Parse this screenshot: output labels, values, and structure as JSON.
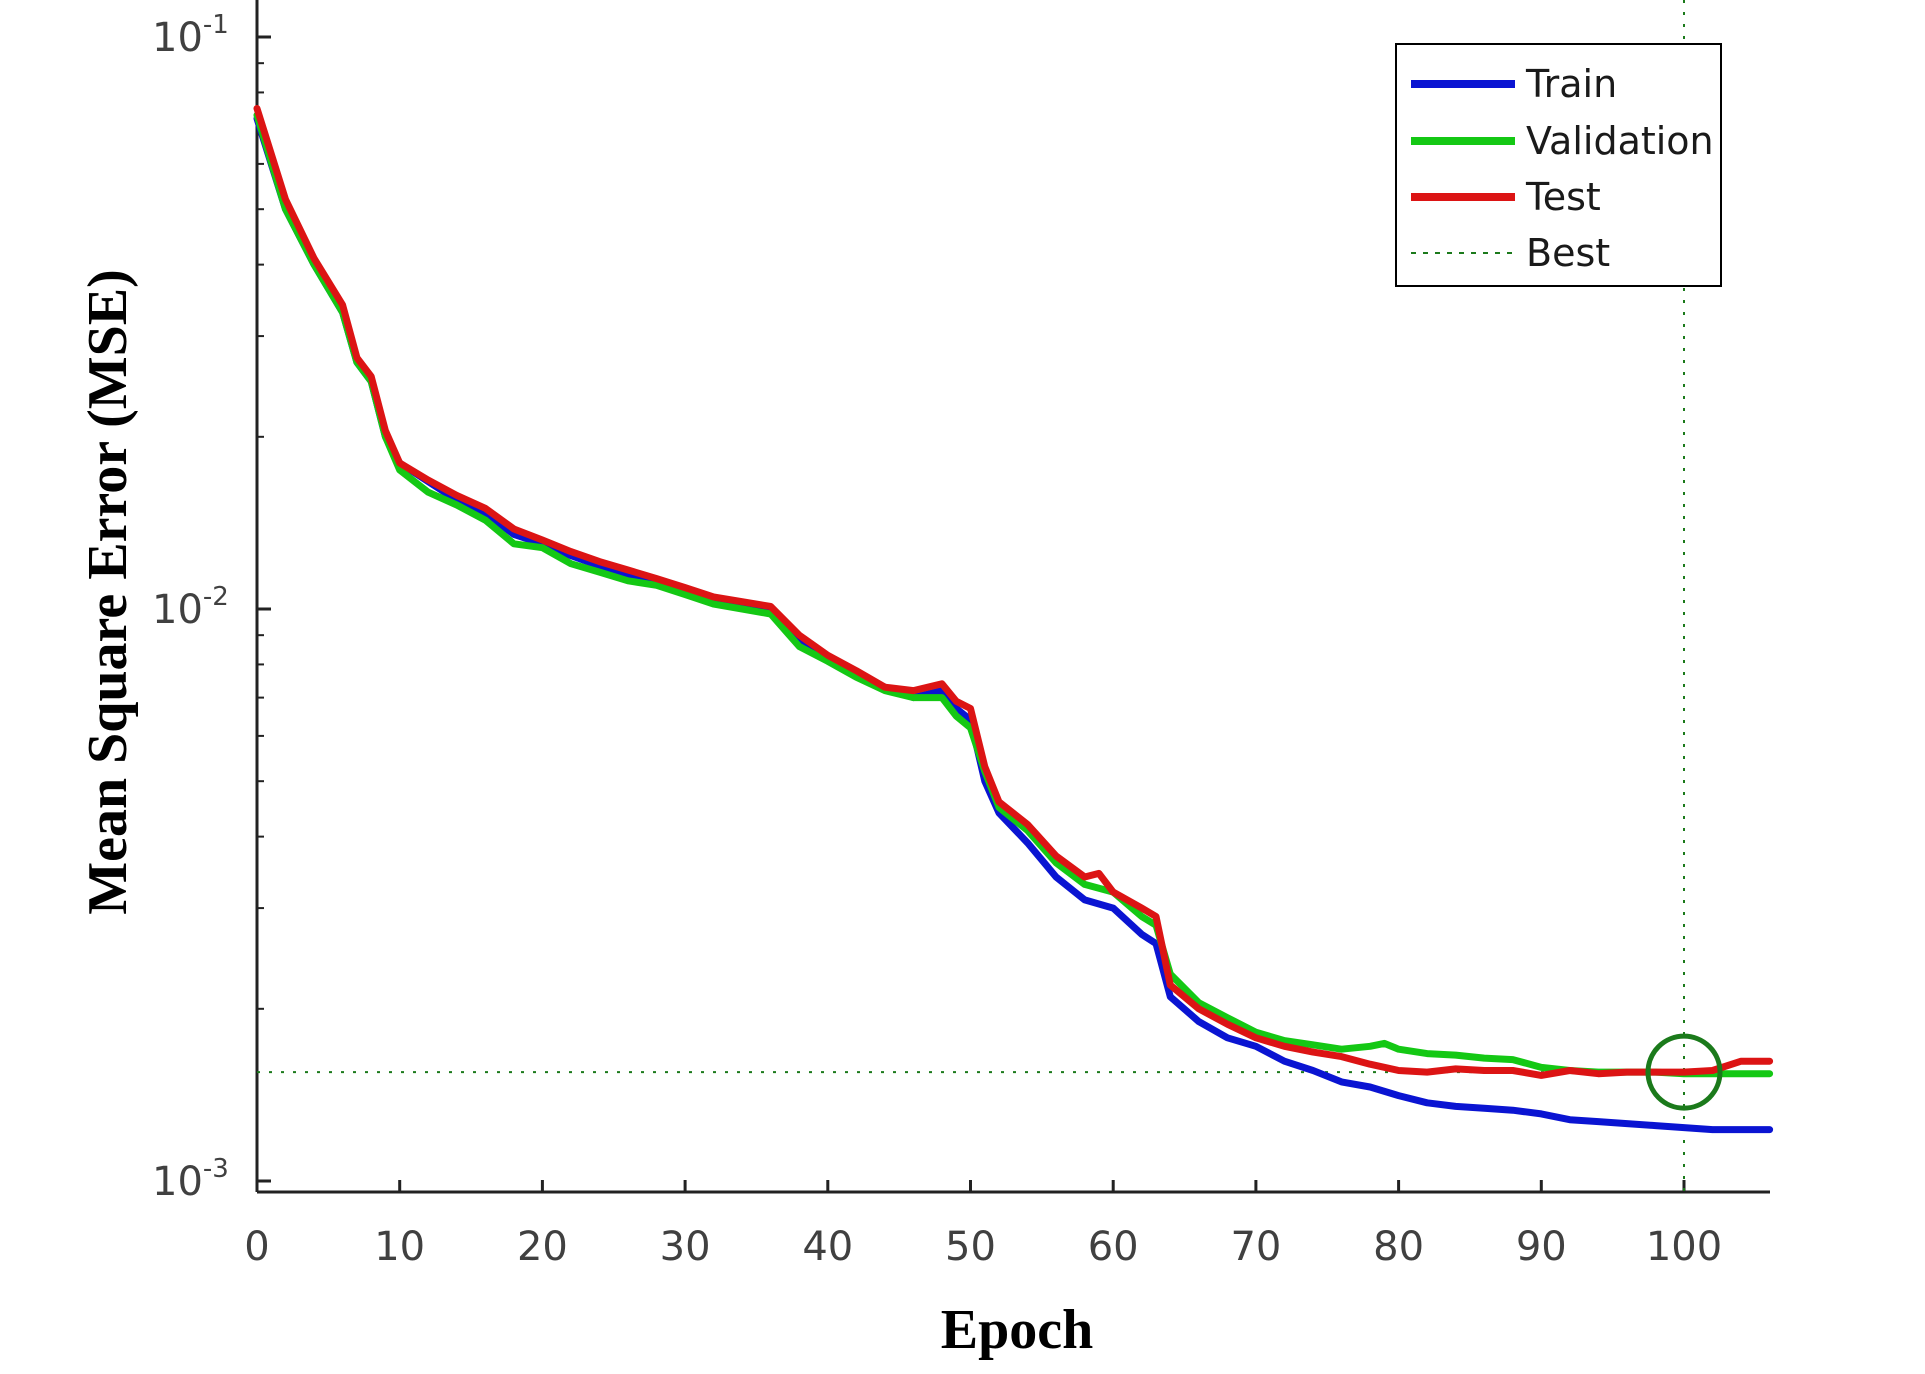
{
  "chart_data": {
    "type": "line",
    "title": "",
    "xlabel": "Epoch",
    "ylabel": "Mean Square Error (MSE)",
    "y_scale": "log",
    "xlim": [
      0,
      106
    ],
    "ylim": [
      0.00085,
      0.12
    ],
    "x_ticks": [
      0,
      10,
      20,
      30,
      40,
      50,
      60,
      70,
      80,
      90,
      100
    ],
    "y_ticks": [
      {
        "value": 0.1,
        "base": "10",
        "exp": "-1"
      },
      {
        "value": 0.01,
        "base": "10",
        "exp": "-2"
      },
      {
        "value": 0.001,
        "base": "10",
        "exp": "-3"
      }
    ],
    "grid": false,
    "legend_position": "top-right",
    "series": [
      {
        "name": "Train",
        "color": "#0a14d2",
        "points": [
          [
            0,
            0.072
          ],
          [
            2,
            0.05
          ],
          [
            4,
            0.04
          ],
          [
            6,
            0.033
          ],
          [
            7,
            0.027
          ],
          [
            8,
            0.025
          ],
          [
            9,
            0.02
          ],
          [
            10,
            0.018
          ],
          [
            12,
            0.0167
          ],
          [
            14,
            0.0155
          ],
          [
            16,
            0.0147
          ],
          [
            18,
            0.0135
          ],
          [
            20,
            0.013
          ],
          [
            22,
            0.0124
          ],
          [
            24,
            0.0119
          ],
          [
            26,
            0.0115
          ],
          [
            28,
            0.0111
          ],
          [
            30,
            0.0107
          ],
          [
            32,
            0.0103
          ],
          [
            34,
            0.0101
          ],
          [
            36,
            0.0099
          ],
          [
            38,
            0.0088
          ],
          [
            40,
            0.0082
          ],
          [
            42,
            0.0077
          ],
          [
            44,
            0.0073
          ],
          [
            46,
            0.007
          ],
          [
            48,
            0.0072
          ],
          [
            49,
            0.0067
          ],
          [
            50,
            0.0064
          ],
          [
            51,
            0.005
          ],
          [
            52,
            0.0044
          ],
          [
            54,
            0.0039
          ],
          [
            56,
            0.0034
          ],
          [
            58,
            0.0031
          ],
          [
            60,
            0.003
          ],
          [
            62,
            0.0027
          ],
          [
            63,
            0.0026
          ],
          [
            64,
            0.0021
          ],
          [
            66,
            0.0019
          ],
          [
            68,
            0.00178
          ],
          [
            70,
            0.00172
          ],
          [
            72,
            0.00162
          ],
          [
            74,
            0.00156
          ],
          [
            76,
            0.00149
          ],
          [
            78,
            0.00146
          ],
          [
            80,
            0.00141
          ],
          [
            82,
            0.00137
          ],
          [
            84,
            0.00135
          ],
          [
            86,
            0.00134
          ],
          [
            88,
            0.00133
          ],
          [
            90,
            0.00131
          ],
          [
            92,
            0.00128
          ],
          [
            94,
            0.00127
          ],
          [
            96,
            0.00126
          ],
          [
            98,
            0.00125
          ],
          [
            100,
            0.00124
          ],
          [
            102,
            0.00123
          ],
          [
            104,
            0.00123
          ],
          [
            106,
            0.00123
          ]
        ]
      },
      {
        "name": "Validation",
        "color": "#14c814",
        "points": [
          [
            0,
            0.073
          ],
          [
            2,
            0.05
          ],
          [
            4,
            0.04
          ],
          [
            6,
            0.033
          ],
          [
            7,
            0.027
          ],
          [
            8,
            0.025
          ],
          [
            9,
            0.02
          ],
          [
            10,
            0.0175
          ],
          [
            12,
            0.016
          ],
          [
            14,
            0.0152
          ],
          [
            16,
            0.0143
          ],
          [
            18,
            0.013
          ],
          [
            20,
            0.0128
          ],
          [
            22,
            0.012
          ],
          [
            24,
            0.0116
          ],
          [
            26,
            0.0112
          ],
          [
            28,
            0.011
          ],
          [
            30,
            0.0106
          ],
          [
            32,
            0.0102
          ],
          [
            34,
            0.01
          ],
          [
            36,
            0.0098
          ],
          [
            38,
            0.0086
          ],
          [
            40,
            0.0081
          ],
          [
            42,
            0.0076
          ],
          [
            44,
            0.0072
          ],
          [
            46,
            0.007
          ],
          [
            48,
            0.007
          ],
          [
            49,
            0.0065
          ],
          [
            50,
            0.0062
          ],
          [
            51,
            0.0052
          ],
          [
            52,
            0.0045
          ],
          [
            54,
            0.0041
          ],
          [
            56,
            0.0036
          ],
          [
            58,
            0.0033
          ],
          [
            60,
            0.0032
          ],
          [
            62,
            0.0029
          ],
          [
            63,
            0.0028
          ],
          [
            64,
            0.0023
          ],
          [
            66,
            0.00205
          ],
          [
            68,
            0.00193
          ],
          [
            70,
            0.00182
          ],
          [
            72,
            0.00176
          ],
          [
            74,
            0.00173
          ],
          [
            76,
            0.0017
          ],
          [
            78,
            0.00172
          ],
          [
            79,
            0.00174
          ],
          [
            80,
            0.0017
          ],
          [
            82,
            0.00167
          ],
          [
            84,
            0.00166
          ],
          [
            86,
            0.00164
          ],
          [
            88,
            0.00163
          ],
          [
            90,
            0.00158
          ],
          [
            92,
            0.00156
          ],
          [
            94,
            0.00155
          ],
          [
            96,
            0.00155
          ],
          [
            98,
            0.00155
          ],
          [
            100,
            0.00154
          ],
          [
            102,
            0.00154
          ],
          [
            104,
            0.00154
          ],
          [
            106,
            0.00154
          ]
        ]
      },
      {
        "name": "Test",
        "color": "#dc1414",
        "points": [
          [
            0,
            0.075
          ],
          [
            2,
            0.052
          ],
          [
            4,
            0.041
          ],
          [
            6,
            0.034
          ],
          [
            7,
            0.0275
          ],
          [
            8,
            0.0255
          ],
          [
            9,
            0.0205
          ],
          [
            10,
            0.018
          ],
          [
            12,
            0.0168
          ],
          [
            14,
            0.0158
          ],
          [
            16,
            0.015
          ],
          [
            18,
            0.0138
          ],
          [
            20,
            0.0132
          ],
          [
            22,
            0.0126
          ],
          [
            24,
            0.0121
          ],
          [
            26,
            0.0117
          ],
          [
            28,
            0.0113
          ],
          [
            30,
            0.0109
          ],
          [
            32,
            0.0105
          ],
          [
            34,
            0.0103
          ],
          [
            36,
            0.0101
          ],
          [
            38,
            0.009
          ],
          [
            40,
            0.0083
          ],
          [
            42,
            0.0078
          ],
          [
            44,
            0.0073
          ],
          [
            46,
            0.0072
          ],
          [
            48,
            0.0074
          ],
          [
            49,
            0.0069
          ],
          [
            50,
            0.0067
          ],
          [
            51,
            0.0053
          ],
          [
            52,
            0.0046
          ],
          [
            54,
            0.0042
          ],
          [
            56,
            0.0037
          ],
          [
            58,
            0.0034
          ],
          [
            59,
            0.00345
          ],
          [
            60,
            0.0032
          ],
          [
            62,
            0.003
          ],
          [
            63,
            0.0029
          ],
          [
            64,
            0.0022
          ],
          [
            66,
            0.002
          ],
          [
            68,
            0.00188
          ],
          [
            70,
            0.00178
          ],
          [
            72,
            0.00172
          ],
          [
            74,
            0.00168
          ],
          [
            76,
            0.00165
          ],
          [
            78,
            0.0016
          ],
          [
            80,
            0.00156
          ],
          [
            82,
            0.00155
          ],
          [
            84,
            0.00157
          ],
          [
            86,
            0.00156
          ],
          [
            88,
            0.00156
          ],
          [
            90,
            0.00153
          ],
          [
            92,
            0.00156
          ],
          [
            94,
            0.00154
          ],
          [
            96,
            0.00155
          ],
          [
            98,
            0.00155
          ],
          [
            100,
            0.00155
          ],
          [
            102,
            0.00156
          ],
          [
            104,
            0.00162
          ],
          [
            106,
            0.00162
          ]
        ]
      }
    ],
    "best": {
      "label": "Best",
      "epoch": 100,
      "value": 0.00155,
      "color": "#1b7a1b"
    }
  }
}
